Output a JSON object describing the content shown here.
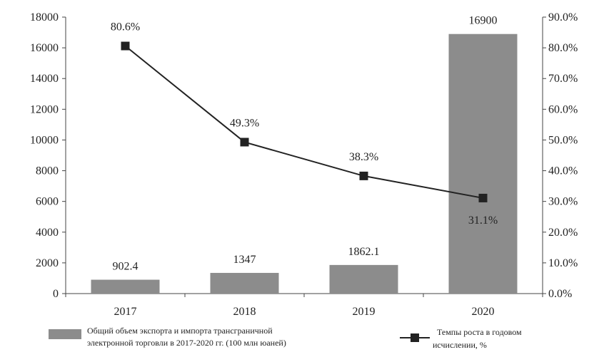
{
  "chart_data": {
    "type": "bar",
    "categories": [
      "2017",
      "2018",
      "2019",
      "2020"
    ],
    "bar_series": {
      "name": "Общий объем экспорта и импорта трансграничной электронной торговли в 2017-2020 гг. (100 млн юаней)",
      "values": [
        902.4,
        1347,
        1862.1,
        16900
      ],
      "labels": [
        "902.4",
        "1347",
        "1862.1",
        "16900"
      ],
      "color": "#8c8c8c"
    },
    "line_series": {
      "name": "Темпы роста в годовом исчислении, %",
      "values": [
        80.6,
        49.3,
        38.3,
        31.1
      ],
      "labels": [
        "80.6%",
        "49.3%",
        "38.3%",
        "31.1%"
      ],
      "color": "#222222",
      "categories": [
        "2017",
        "2018",
        "2019",
        "2020"
      ]
    },
    "y_left": {
      "ylim": [
        0,
        18000
      ],
      "ticks": [
        "0",
        "2000",
        "4000",
        "6000",
        "8000",
        "10000",
        "12000",
        "14000",
        "16000",
        "18000"
      ]
    },
    "y_right": {
      "ylim": [
        0,
        90
      ],
      "ticks": [
        "0.0%",
        "10.0%",
        "20.0%",
        "30.0%",
        "40.0%",
        "50.0%",
        "60.0%",
        "70.0%",
        "80.0%",
        "90.0%"
      ]
    },
    "legend": {
      "placement": "bottom",
      "bar_label_line1": "Общий объем экспорта и импорта трансграничной",
      "bar_label_line2": "электронной торговли в 2017-2020 гг. (100 млн юаней)",
      "line_label_line1": "Темпы роста в годовом",
      "line_label_line2": "исчислении, %"
    },
    "grid": false
  }
}
